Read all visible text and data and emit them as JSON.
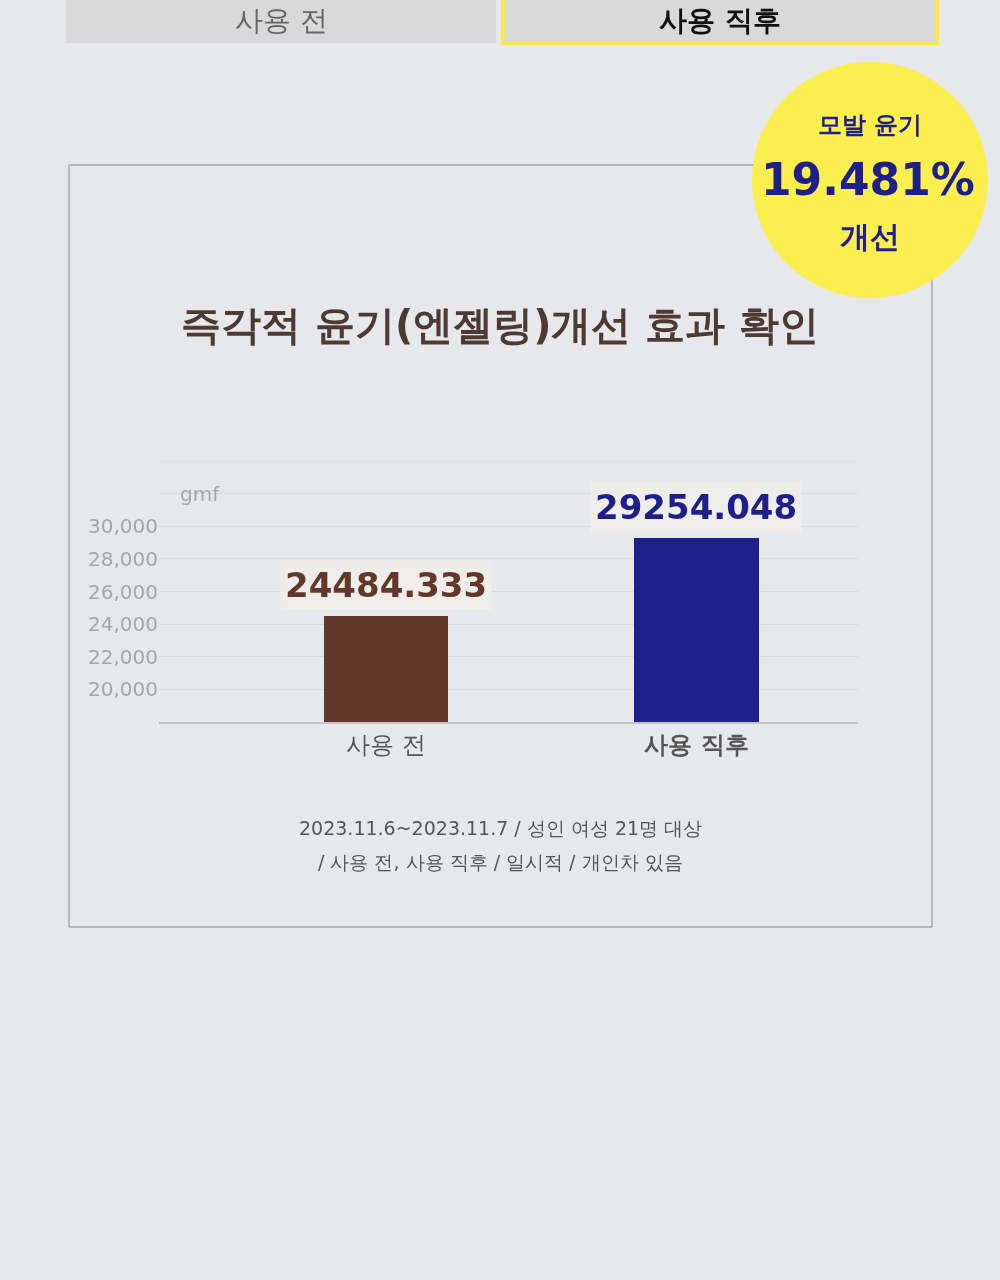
{
  "chart_data": {
    "type": "bar",
    "title": "즉각적 윤기(엔젤링)개선 효과 확인",
    "ylabel": "gmf",
    "categories": [
      "사용 전",
      "사용 직후"
    ],
    "values": [
      24484.333,
      29254.048
    ],
    "colors": [
      "#63372a",
      "#1e1f8a"
    ],
    "value_labels": [
      "24484.333",
      "29254.048"
    ],
    "ylim": [
      18000,
      34000
    ],
    "yticks": [
      {
        "value": 20000,
        "label": "20,000"
      },
      {
        "value": 22000,
        "label": "22,000"
      },
      {
        "value": 24000,
        "label": "24,000"
      },
      {
        "value": 26000,
        "label": "26,000"
      },
      {
        "value": 28000,
        "label": "28,000"
      },
      {
        "value": 30000,
        "label": "30,000"
      },
      {
        "value": 32000,
        "label": null
      },
      {
        "value": 34000,
        "label": null
      }
    ],
    "grid": "y",
    "annotations": [
      "사용 전",
      "사용 직후",
      "모발 윤기",
      "19.481%",
      "개선",
      "2023.11.6~2023.11.7 / 성인 여성 21명 대상",
      "/ 사용 전, 사용 직후 / 일시적 / 개인차 있음"
    ]
  }
}
